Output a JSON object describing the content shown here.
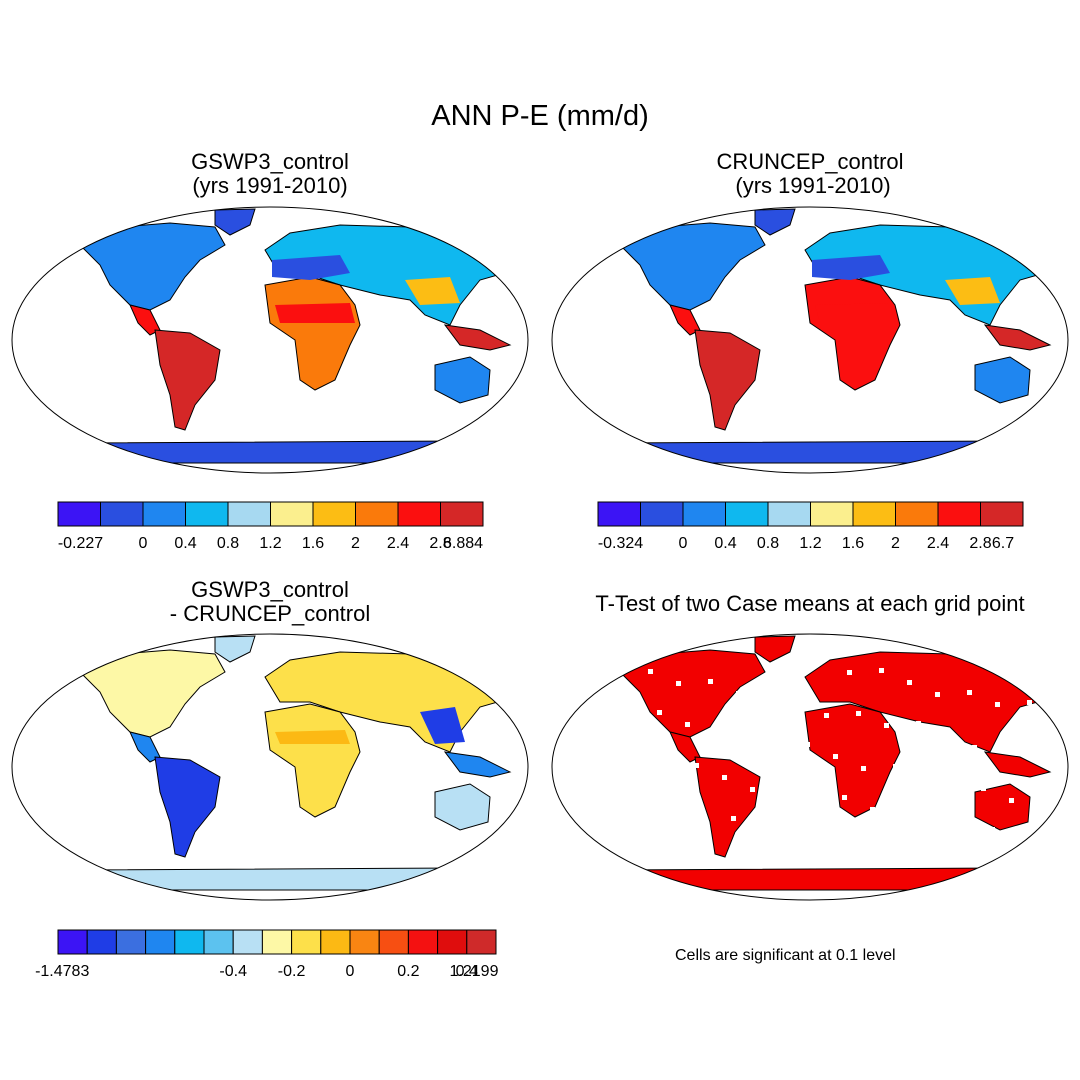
{
  "main_title": "ANN P-E (mm/d)",
  "panels": [
    {
      "id": "gswp3",
      "title_line1": "GSWP3_control",
      "title_line2": "(yrs 1991-2010)",
      "colorbar": {
        "colors": [
          "#3c14f5",
          "#2a4fe0",
          "#1f86f0",
          "#0fb8ef",
          "#a7d9f1",
          "#fbef8e",
          "#fcbd14",
          "#fa7a0b",
          "#fb0f0f",
          "#d52727"
        ],
        "labels": [
          "-0.227",
          "0",
          "0.4",
          "0.8",
          "1.2",
          "1.6",
          "2",
          "2.4",
          "2.8",
          "6.884"
        ]
      }
    },
    {
      "id": "cruncep",
      "title_line1": "CRUNCEP_control",
      "title_line2": " (yrs 1991-2010)",
      "colorbar": {
        "colors": [
          "#3c14f5",
          "#2a4fe0",
          "#1f86f0",
          "#0fb8ef",
          "#a7d9f1",
          "#fbef8e",
          "#fcbd14",
          "#fa7a0b",
          "#fb0f0f",
          "#d52727"
        ],
        "labels": [
          "-0.324",
          "0",
          "0.4",
          "0.8",
          "1.2",
          "1.6",
          "2",
          "2.4",
          "2.8",
          "6.7"
        ]
      }
    },
    {
      "id": "difference",
      "title_line1": "GSWP3_control",
      "title_line2": "- CRUNCEP_control",
      "colorbar": {
        "colors": [
          "#3c14f5",
          "#1f3de6",
          "#3b6fe0",
          "#1f86f0",
          "#0fb8ef",
          "#5cc2ef",
          "#b8e0f4",
          "#fdf8a6",
          "#fde04a",
          "#fcb914",
          "#f98512",
          "#f74f12",
          "#f41111",
          "#df0d0d",
          "#cf2a2a"
        ],
        "labels": [
          "-1.4783",
          "-0.4",
          "-0.2",
          "0",
          "0.2",
          "0.4",
          "1.2199"
        ]
      }
    },
    {
      "id": "ttest",
      "title_line1": "T-Test of two Case means at each grid point",
      "title_line2": "",
      "note": "Cells are significant at 0.1 level"
    }
  ],
  "colors": {
    "land_outline": "#000000",
    "significance": "#f20000",
    "ice": "#3c14f5"
  }
}
